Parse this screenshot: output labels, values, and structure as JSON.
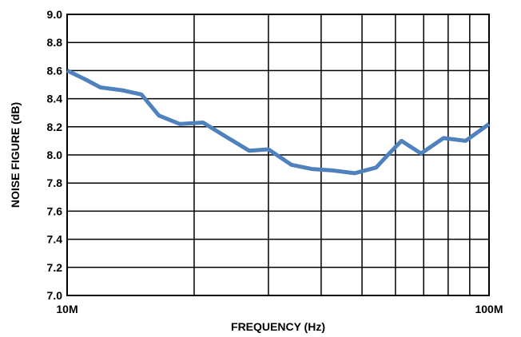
{
  "chart_data": {
    "type": "line",
    "xlabel": "FREQUENCY (Hz)",
    "ylabel": "NOISE FIGURE (dB)",
    "xscale": "log",
    "xlim": [
      10000000,
      100000000
    ],
    "ylim": [
      7.0,
      9.0
    ],
    "xticks": [
      {
        "value": 10000000,
        "label": "10M"
      },
      {
        "value": 100000000,
        "label": "100M"
      }
    ],
    "yticks": [
      {
        "value": 7.0,
        "label": "7.0"
      },
      {
        "value": 7.2,
        "label": "7.2"
      },
      {
        "value": 7.4,
        "label": "7.4"
      },
      {
        "value": 7.6,
        "label": "7.6"
      },
      {
        "value": 7.8,
        "label": "7.8"
      },
      {
        "value": 8.0,
        "label": "8.0"
      },
      {
        "value": 8.2,
        "label": "8.2"
      },
      {
        "value": 8.4,
        "label": "8.4"
      },
      {
        "value": 8.6,
        "label": "8.6"
      },
      {
        "value": 8.8,
        "label": "8.8"
      },
      {
        "value": 9.0,
        "label": "9.0"
      }
    ],
    "grid": true,
    "minor_x_grid": [
      20000000,
      30000000,
      40000000,
      50000000,
      60000000,
      70000000,
      80000000,
      90000000
    ],
    "series": [
      {
        "color": "#4f81bd",
        "points": [
          [
            10000000,
            8.6
          ],
          [
            11000000,
            8.54
          ],
          [
            12000000,
            8.48
          ],
          [
            13500000,
            8.46
          ],
          [
            15000000,
            8.43
          ],
          [
            16500000,
            8.28
          ],
          [
            18500000,
            8.22
          ],
          [
            21000000,
            8.23
          ],
          [
            23500000,
            8.14
          ],
          [
            27000000,
            8.03
          ],
          [
            30000000,
            8.04
          ],
          [
            34000000,
            7.93
          ],
          [
            38000000,
            7.9
          ],
          [
            42500000,
            7.89
          ],
          [
            48000000,
            7.87
          ],
          [
            54000000,
            7.91
          ],
          [
            58000000,
            8.01
          ],
          [
            62000000,
            8.1
          ],
          [
            69000000,
            8.01
          ],
          [
            78000000,
            8.12
          ],
          [
            88000000,
            8.1
          ],
          [
            100000000,
            8.22
          ]
        ]
      }
    ]
  }
}
